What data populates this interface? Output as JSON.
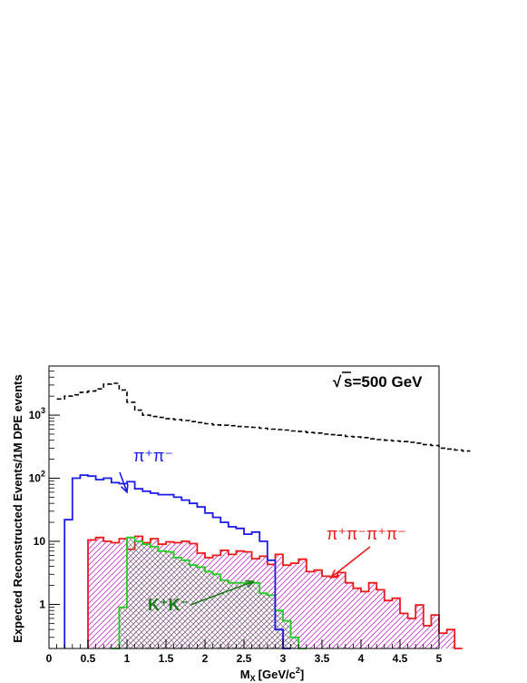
{
  "chart_data": {
    "type": "histogram",
    "xlabel": "M",
    "xlabel_sub": "X",
    "xlabel_unit_pre": "[GeV/c",
    "xlabel_unit_sup": "2",
    "xlabel_unit_post": "]",
    "ylabel": "Expected Reconstructed Events/1M DPE events",
    "xlim": [
      0,
      5
    ],
    "ylim": [
      0.2,
      6000
    ],
    "yscale": "log",
    "x_ticks": [
      "0",
      "0.5",
      "1",
      "1.5",
      "2",
      "2.5",
      "3",
      "3.5",
      "4",
      "4.5",
      "5"
    ],
    "y_ticks": [
      {
        "value": 1,
        "base": "1",
        "exp": ""
      },
      {
        "value": 10,
        "base": "10",
        "exp": ""
      },
      {
        "value": 100,
        "base": "10",
        "exp": "2"
      },
      {
        "value": 1000,
        "base": "10",
        "exp": "3"
      }
    ],
    "annotation": {
      "sqrt_symbol": "√",
      "text": "s=500 GeV"
    },
    "bin_width": 0.1,
    "series": [
      {
        "id": "all",
        "color": "#000000",
        "style": "dashed",
        "fill": "none",
        "x_start": 0.1,
        "values": [
          1800,
          2000,
          2100,
          2300,
          2400,
          2600,
          3100,
          3200,
          2500,
          1600,
          1200,
          1000,
          950,
          920,
          880,
          850,
          820,
          790,
          760,
          730,
          700,
          690,
          680,
          660,
          650,
          640,
          620,
          600,
          590,
          580,
          560,
          550,
          530,
          520,
          500,
          490,
          480,
          460,
          450,
          440,
          420,
          410,
          400,
          390,
          380,
          370,
          360,
          340,
          330,
          300,
          290,
          280,
          270
        ]
      },
      {
        "id": "pipi",
        "color": "#1a1aee",
        "style": "solid",
        "fill": "none",
        "x_start": 0.2,
        "values": [
          22,
          100,
          112,
          108,
          95,
          100,
          85,
          82,
          88,
          68,
          62,
          58,
          55,
          55,
          50,
          45,
          40,
          35,
          28,
          24,
          20,
          17,
          16,
          13,
          14,
          10,
          5,
          0.4,
          0.2
        ]
      },
      {
        "id": "pipipipi",
        "color": "#ee1a1a",
        "style": "solid",
        "fill": "hatch-magenta",
        "x_start": 0.5,
        "values": [
          10.5,
          11.5,
          10,
          9.5,
          11,
          7.5,
          12,
          9.5,
          11,
          9,
          9.8,
          9.5,
          10,
          9.2,
          6.5,
          5.5,
          6,
          7.2,
          6.2,
          7,
          6.8,
          5.3,
          5.8,
          4.3,
          6.2,
          4.2,
          4.5,
          5.2,
          3.3,
          3.5,
          2.8,
          2.7,
          3.2,
          2.2,
          1.8,
          1.6,
          2.2,
          1.7,
          1.15,
          1.25,
          0.72,
          0.6,
          0.98,
          0.46,
          0.68,
          0.35,
          0.4,
          0.2
        ]
      },
      {
        "id": "kk",
        "color": "#22cc22",
        "style": "solid",
        "fill": "hatch-gray",
        "x_start": 0.8,
        "values": [
          0.2,
          0.9,
          11.5,
          10,
          9,
          8.2,
          7,
          6.8,
          5.5,
          5,
          4.2,
          3.9,
          3.3,
          3.0,
          2.4,
          2.2,
          2.2,
          2.2,
          2.2,
          1.5,
          1.4,
          0.8,
          0.55,
          0.3,
          0.2
        ]
      }
    ],
    "labels": [
      {
        "id": "pipi",
        "color": "#1a1aee",
        "text": "π⁺π⁻",
        "arrow_to": [
          1.0,
          60
        ]
      },
      {
        "id": "pipipipi",
        "color": "#ee1a1a",
        "text": "π⁺π⁻π⁺π⁻",
        "arrow_to": [
          3.62,
          2.7
        ]
      },
      {
        "id": "kk",
        "color": "#1a7a1a",
        "text": "K⁺K⁻",
        "arrow_to": [
          2.62,
          2.3
        ]
      }
    ]
  }
}
